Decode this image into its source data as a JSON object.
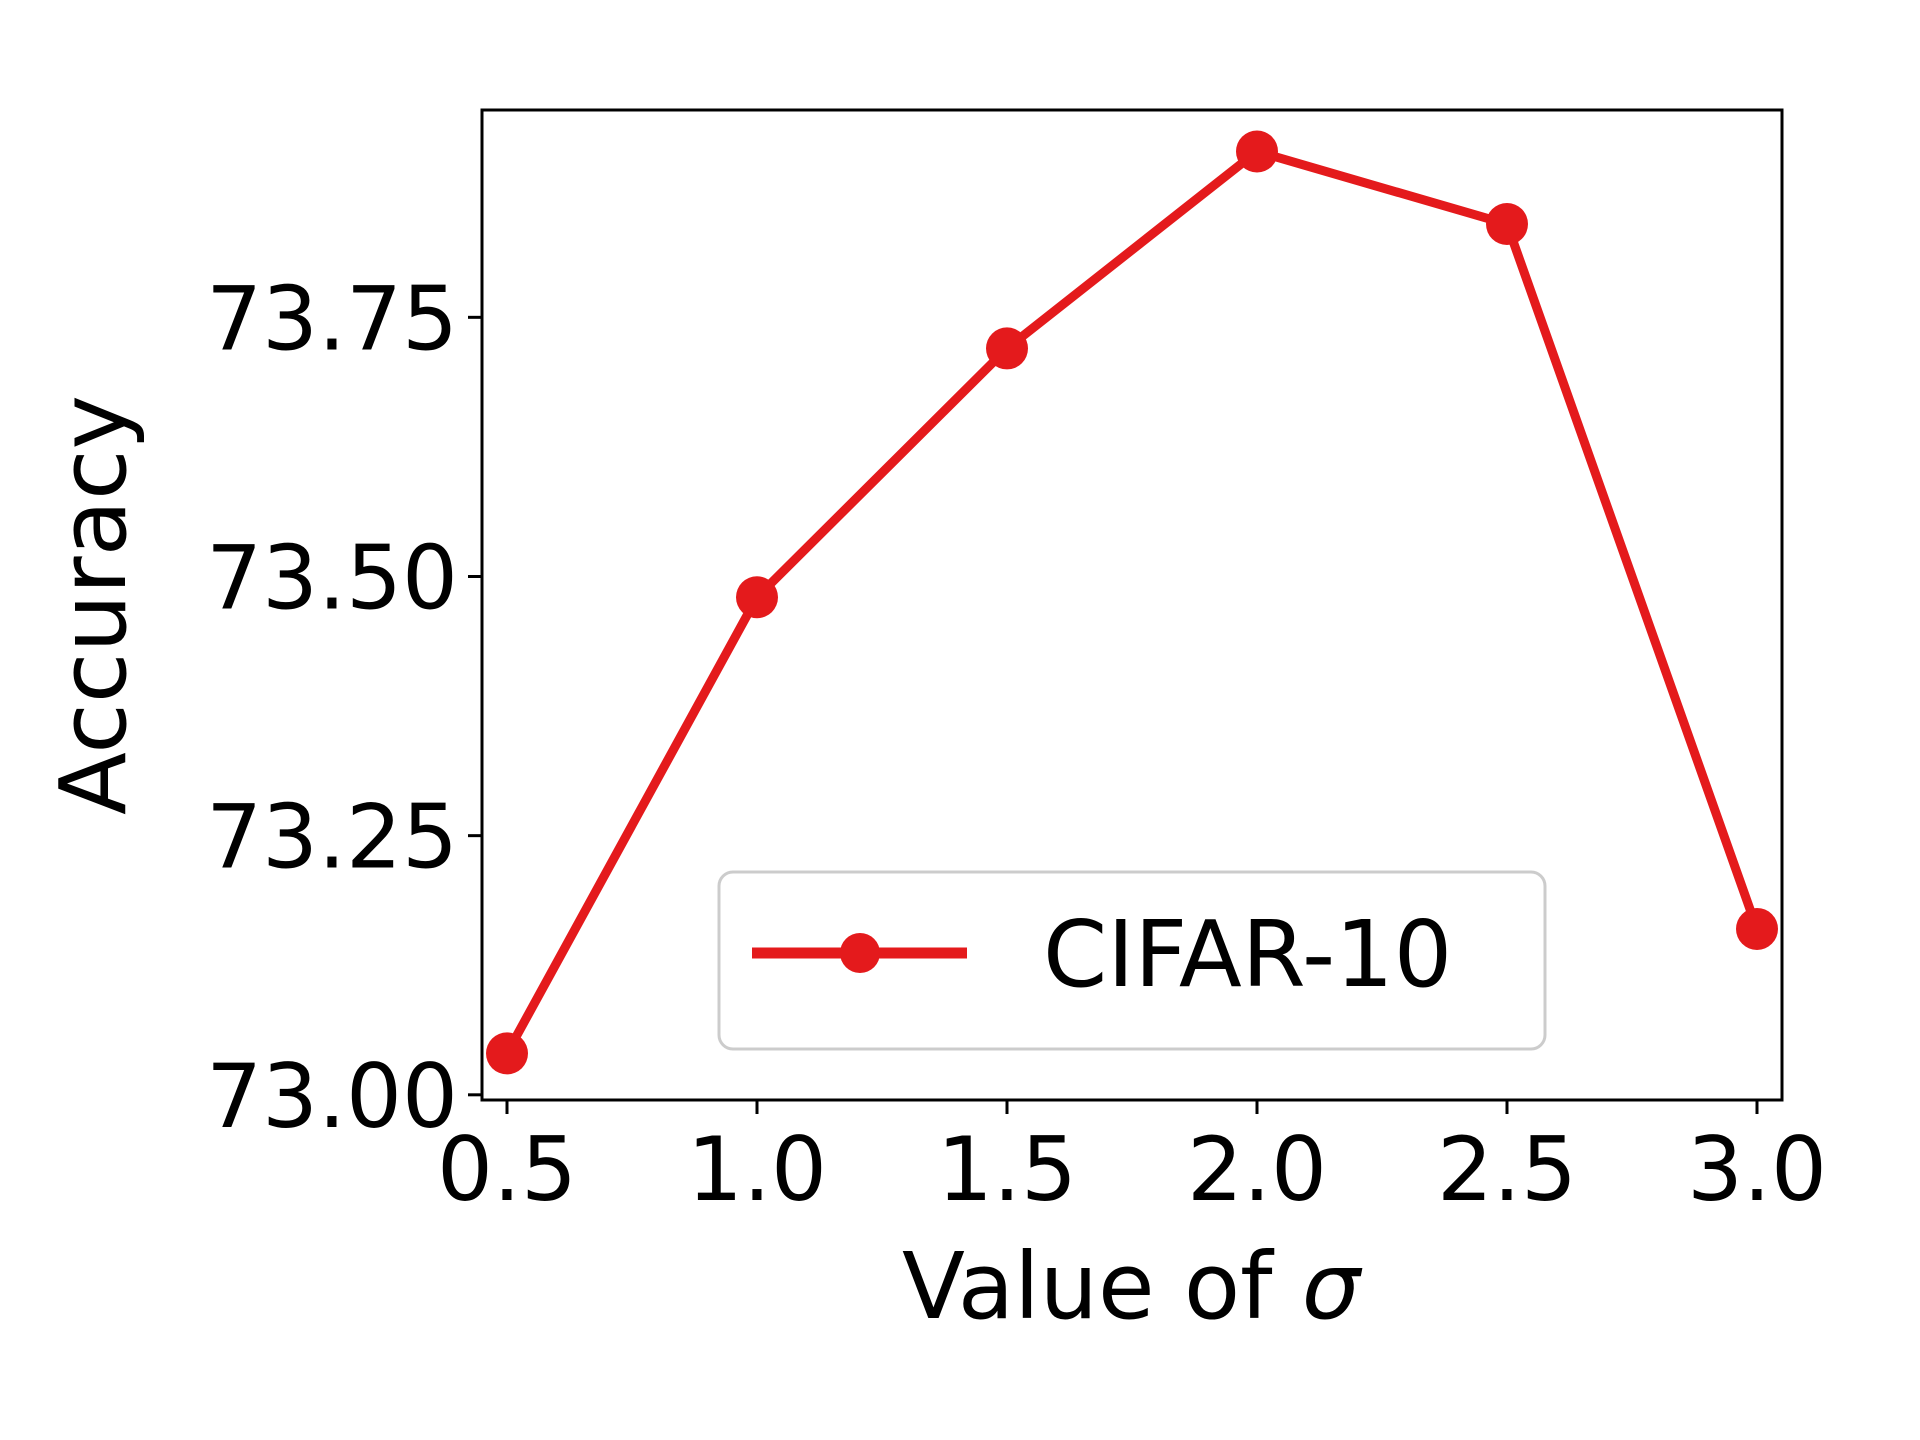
{
  "chart_data": {
    "type": "line",
    "title": "",
    "xlabel_prefix": "Value of ",
    "xlabel_symbol": "σ",
    "ylabel": "Accuracy",
    "x": [
      0.5,
      1.0,
      1.5,
      2.0,
      2.5,
      3.0
    ],
    "xticks": [
      "0.5",
      "1.0",
      "1.5",
      "2.0",
      "2.5",
      "3.0"
    ],
    "yticks": [
      73.0,
      73.25,
      73.5,
      73.75
    ],
    "ytick_labels": [
      "73.00",
      "73.25",
      "73.50",
      "73.75"
    ],
    "xlim": [
      0.45,
      3.05
    ],
    "ylim": [
      72.995,
      73.95
    ],
    "grid": false,
    "legend_position": "lower-right",
    "series": [
      {
        "name": "CIFAR-10",
        "color": "#e41a1c",
        "marker": "circle",
        "values": [
          73.04,
          73.48,
          73.72,
          73.91,
          73.84,
          73.16
        ]
      }
    ]
  }
}
